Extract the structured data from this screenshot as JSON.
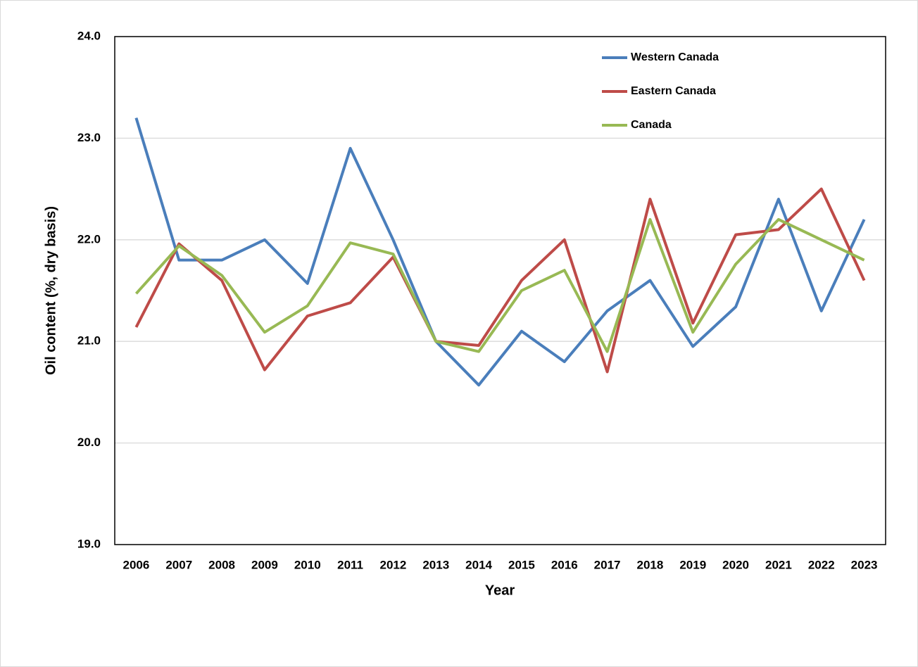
{
  "chart_data": {
    "type": "line",
    "x_label": "Year",
    "y_label": "Oil content (%, dry basis)",
    "categories": [
      "2006",
      "2007",
      "2008",
      "2009",
      "2010",
      "2011",
      "2012",
      "2013",
      "2014",
      "2015",
      "2016",
      "2017",
      "2018",
      "2019",
      "2020",
      "2021",
      "2022",
      "2023"
    ],
    "series": [
      {
        "name": "Western Canada",
        "color": "#4a7ebb",
        "values": [
          23.2,
          21.8,
          21.8,
          22.0,
          21.57,
          22.9,
          22.0,
          21.0,
          20.57,
          21.1,
          20.8,
          21.3,
          21.6,
          20.95,
          21.34,
          22.4,
          21.3,
          22.2
        ]
      },
      {
        "name": "Eastern Canada",
        "color": "#be4b48",
        "values": [
          21.14,
          21.96,
          21.6,
          20.72,
          21.25,
          21.38,
          21.83,
          21.0,
          20.96,
          21.6,
          22.0,
          20.7,
          22.4,
          21.18,
          22.05,
          22.1,
          22.5,
          21.6
        ]
      },
      {
        "name": "Canada",
        "color": "#98b954",
        "values": [
          21.47,
          21.94,
          21.65,
          21.09,
          21.35,
          21.97,
          21.86,
          21.0,
          20.9,
          21.5,
          21.7,
          20.9,
          22.2,
          21.09,
          21.76,
          22.2,
          22.0,
          21.8
        ]
      }
    ],
    "ylim": [
      19,
      24
    ],
    "yticks": [
      {
        "value": 19,
        "label": "19.0"
      },
      {
        "value": 20,
        "label": "20.0"
      },
      {
        "value": 21,
        "label": "21.0"
      },
      {
        "value": 22,
        "label": "22.0"
      },
      {
        "value": 23,
        "label": "23.0"
      },
      {
        "value": 24,
        "label": "24.0"
      }
    ],
    "grid": true,
    "legend": "top-right"
  }
}
